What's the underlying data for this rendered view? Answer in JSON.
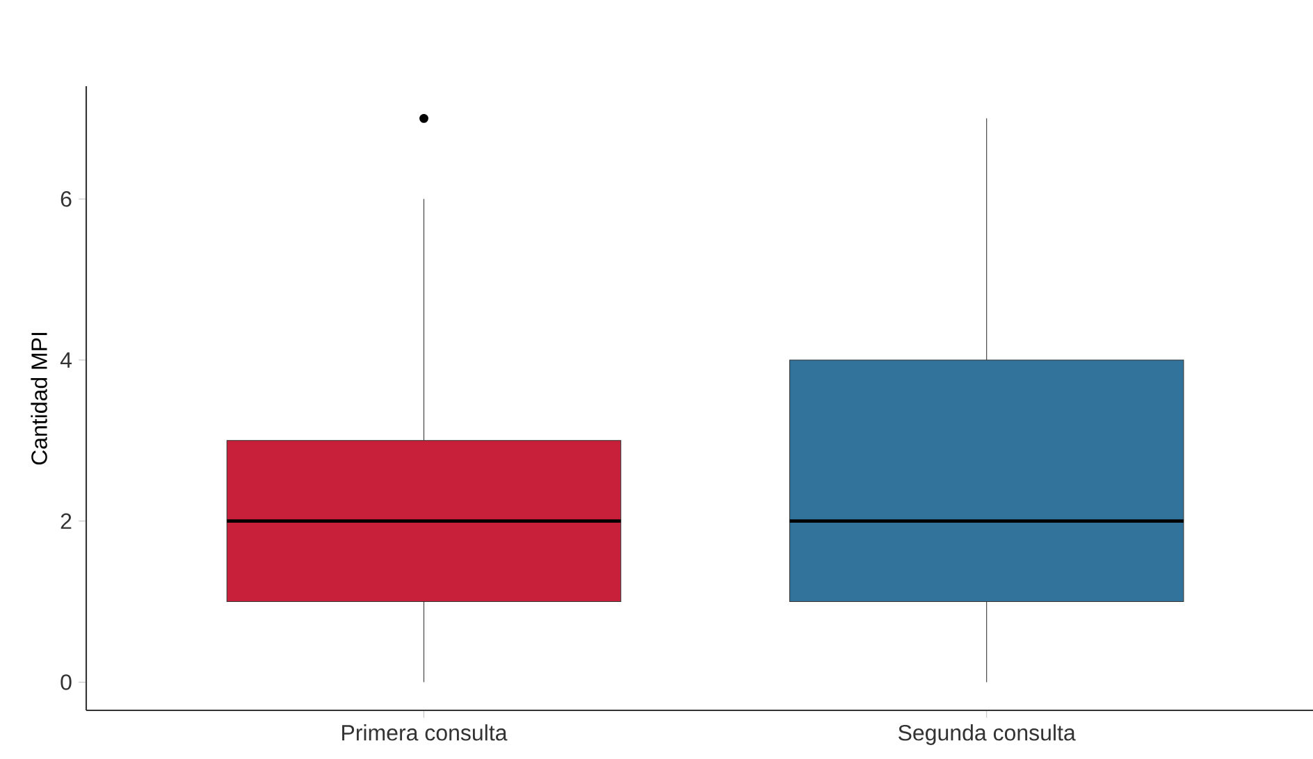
{
  "chart_data": {
    "type": "box",
    "ylabel": "Cantidad MPI",
    "categories": [
      "Primera consulta",
      "Segunda consulta"
    ],
    "boxes": [
      {
        "low": 0,
        "q1": 1,
        "median": 2,
        "q3": 3,
        "high": 6,
        "outliers": [
          7
        ]
      },
      {
        "low": 0,
        "q1": 1,
        "median": 2,
        "q3": 4,
        "high": 7
      }
    ],
    "colors": [
      "#c8203a",
      "#31739a"
    ],
    "ylim": [
      -0.35,
      7.4
    ],
    "yticks": [
      0,
      2,
      4,
      6
    ],
    "grid": false
  }
}
